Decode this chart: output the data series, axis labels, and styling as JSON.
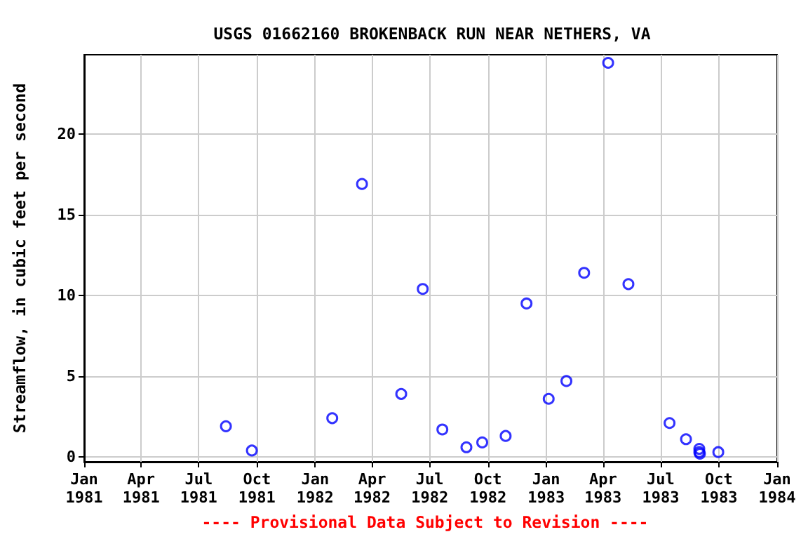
{
  "chart_data": {
    "type": "scatter",
    "title": "USGS 01662160 BROKENBACK RUN NEAR NETHERS, VA",
    "ylabel": "Streamflow, in cubic feet per second",
    "annotations": [
      "---- Provisional Data Subject to Revision ----"
    ],
    "x": [
      "1981-08-13",
      "1981-09-23",
      "1982-01-28",
      "1982-03-16",
      "1982-05-17",
      "1982-06-20",
      "1982-07-21",
      "1982-08-28",
      "1982-09-22",
      "1982-10-29",
      "1982-12-01",
      "1983-01-05",
      "1983-02-02",
      "1983-03-02",
      "1983-04-09",
      "1983-05-11",
      "1983-07-15",
      "1983-08-10",
      "1983-08-31",
      "1983-08-31",
      "1983-09-01",
      "1983-09-30"
    ],
    "series": [
      {
        "color": "#0000ff",
        "values": [
          1.9,
          0.4,
          2.4,
          16.9,
          3.9,
          10.4,
          1.7,
          0.6,
          0.9,
          1.3,
          9.5,
          3.6,
          4.7,
          11.4,
          24.4,
          10.7,
          2.1,
          1.1,
          0.5,
          0.3,
          0.2,
          0.3
        ]
      }
    ],
    "xlim": [
      "1981-01-01",
      "1984-01-01"
    ],
    "xticks": [
      {
        "value": "1981-01",
        "label": "Jan\n1981"
      },
      {
        "value": "1981-04",
        "label": "Apr\n1981"
      },
      {
        "value": "1981-07",
        "label": "Jul\n1981"
      },
      {
        "value": "1981-10",
        "label": "Oct\n1981"
      },
      {
        "value": "1982-01",
        "label": "Jan\n1982"
      },
      {
        "value": "1982-04",
        "label": "Apr\n1982"
      },
      {
        "value": "1982-07",
        "label": "Jul\n1982"
      },
      {
        "value": "1982-10",
        "label": "Oct\n1982"
      },
      {
        "value": "1983-01",
        "label": "Jan\n1983"
      },
      {
        "value": "1983-04",
        "label": "Apr\n1983"
      },
      {
        "value": "1983-07",
        "label": "Jul\n1983"
      },
      {
        "value": "1983-10",
        "label": "Oct\n1983"
      },
      {
        "value": "1984-01",
        "label": "Jan\n1984"
      }
    ],
    "ylim": [
      -0.3,
      24.9
    ],
    "yticks": [
      0,
      5,
      10,
      15,
      20
    ],
    "grid": true,
    "marker": "circle"
  }
}
